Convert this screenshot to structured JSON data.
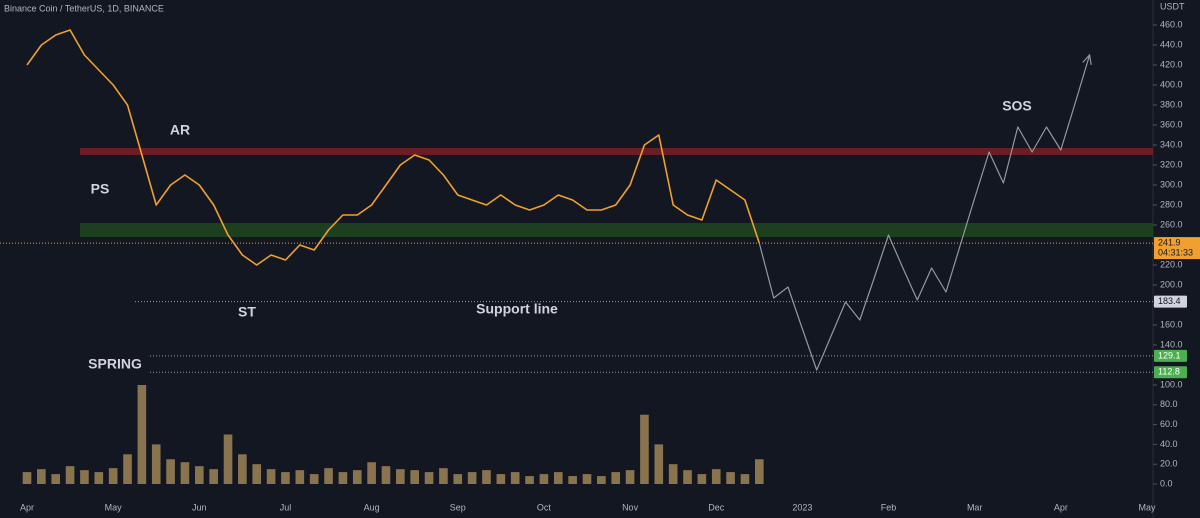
{
  "chart_data": {
    "type": "line",
    "title": "Binance Coin / TetherUS, 1D, BINANCE",
    "currency": "USDT",
    "categories": [
      "Apr",
      null,
      null,
      null,
      null,
      null,
      "May",
      null,
      null,
      null,
      null,
      null,
      "Jun",
      null,
      null,
      null,
      null,
      null,
      "Jul",
      null,
      null,
      null,
      null,
      null,
      "Aug",
      null,
      null,
      null,
      null,
      null,
      "Sep",
      null,
      null,
      null,
      null,
      null,
      "Oct",
      null,
      null,
      null,
      null,
      null,
      "Nov",
      null,
      null,
      null,
      null,
      null,
      "Dec",
      null,
      null,
      null,
      null,
      null,
      "2023",
      null,
      null,
      null,
      null,
      null,
      "Feb",
      null,
      null,
      null,
      null,
      null,
      "Mar",
      null,
      null,
      null,
      null,
      null,
      "Apr",
      null,
      null,
      null,
      null,
      null,
      "May"
    ],
    "series": [
      {
        "color": "#f0a030",
        "values": [
          420,
          440,
          450,
          455,
          430,
          415,
          400,
          380,
          330,
          280,
          300,
          310,
          300,
          280,
          250,
          230,
          220,
          230,
          225,
          240,
          235,
          255,
          270,
          270,
          280,
          300,
          320,
          330,
          325,
          310,
          290,
          285,
          280,
          290,
          280,
          275,
          280,
          290,
          285,
          275,
          275,
          280,
          300,
          340,
          350,
          280,
          270,
          265,
          305,
          295,
          285,
          241.9,
          null,
          null,
          null,
          null,
          null,
          null,
          null,
          null,
          null,
          null,
          null,
          null,
          null,
          null,
          null,
          null,
          null,
          null,
          null,
          null,
          null,
          null,
          null,
          null,
          null,
          null,
          null
        ]
      },
      {
        "axis": "y2",
        "color": "#8a7450",
        "values": [
          12,
          15,
          10,
          18,
          14,
          12,
          16,
          30,
          100,
          40,
          25,
          22,
          18,
          15,
          50,
          30,
          20,
          15,
          12,
          14,
          10,
          16,
          12,
          14,
          22,
          18,
          15,
          14,
          12,
          16,
          10,
          12,
          14,
          10,
          12,
          8,
          10,
          12,
          8,
          10,
          8,
          12,
          14,
          70,
          40,
          20,
          14,
          10,
          15,
          12,
          10,
          25,
          null,
          null,
          null,
          null,
          null,
          null,
          null,
          null,
          null,
          null,
          null,
          null,
          null,
          null,
          null,
          null,
          null,
          null,
          null,
          null,
          null,
          null,
          null,
          null,
          null,
          null,
          null
        ]
      }
    ],
    "projection": {
      "color": "#9598a1",
      "values": [
        null,
        null,
        null,
        null,
        null,
        null,
        null,
        null,
        null,
        null,
        null,
        null,
        null,
        null,
        null,
        null,
        null,
        null,
        null,
        null,
        null,
        null,
        null,
        null,
        null,
        null,
        null,
        null,
        null,
        null,
        null,
        null,
        null,
        null,
        null,
        null,
        null,
        null,
        null,
        null,
        null,
        null,
        null,
        null,
        null,
        null,
        null,
        null,
        null,
        null,
        null,
        241.9,
        187,
        198,
        156,
        115,
        149,
        183,
        165,
        207,
        250,
        217,
        185,
        217,
        193,
        240,
        287,
        333,
        302,
        358,
        333,
        358,
        335,
        382,
        430,
        null,
        null,
        null,
        null
      ]
    },
    "ylim": [
      100,
      460
    ],
    "yticks": [
      {
        "value": 140,
        "label": "140.0"
      },
      {
        "value": 160,
        "label": "160.0"
      },
      {
        "value": 180,
        "label": "180.0"
      },
      {
        "value": 200,
        "label": "200.0"
      },
      {
        "value": 220,
        "label": "220.0"
      },
      {
        "value": 240,
        "label": "240.0"
      },
      {
        "value": 260,
        "label": "260.0"
      },
      {
        "value": 280,
        "label": "280.0"
      },
      {
        "value": 300,
        "label": "300.0"
      },
      {
        "value": 320,
        "label": "320.0"
      },
      {
        "value": 340,
        "label": "340.0"
      },
      {
        "value": 360,
        "label": "360.0"
      },
      {
        "value": 380,
        "label": "380.0"
      },
      {
        "value": 400,
        "label": "400.0"
      },
      {
        "value": 420,
        "label": "420.0"
      },
      {
        "value": 440,
        "label": "440.0"
      },
      {
        "value": 460,
        "label": "460.0"
      }
    ],
    "y2lim": [
      0,
      100
    ],
    "y2ticks": [
      {
        "value": 0,
        "label": "0.0"
      },
      {
        "value": 20,
        "label": "20.0"
      },
      {
        "value": 40,
        "label": "40.0"
      },
      {
        "value": 60,
        "label": "60.0"
      },
      {
        "value": 80,
        "label": "80.0"
      },
      {
        "value": 100,
        "label": "100.0"
      }
    ],
    "zones": [
      {
        "range": [
          330,
          337
        ],
        "color": "#7a1f24"
      },
      {
        "range": [
          248,
          262
        ],
        "color": "#1e4620"
      }
    ],
    "levels": [
      {
        "value": 183.4,
        "label": "183.4",
        "color": "#d1d4dc"
      },
      {
        "value": 129.1,
        "label": "129.1",
        "color": "#4caf50"
      },
      {
        "value": 112.8,
        "label": "112.8",
        "color": "#4caf50"
      }
    ],
    "last_price": {
      "value": 241.9,
      "label": "241.9",
      "color": "#f0a030"
    },
    "countdown": "04:31:33",
    "annotations": [
      "PS",
      "AR",
      "ST",
      "SPRING",
      "Support line",
      "SOS"
    ]
  }
}
